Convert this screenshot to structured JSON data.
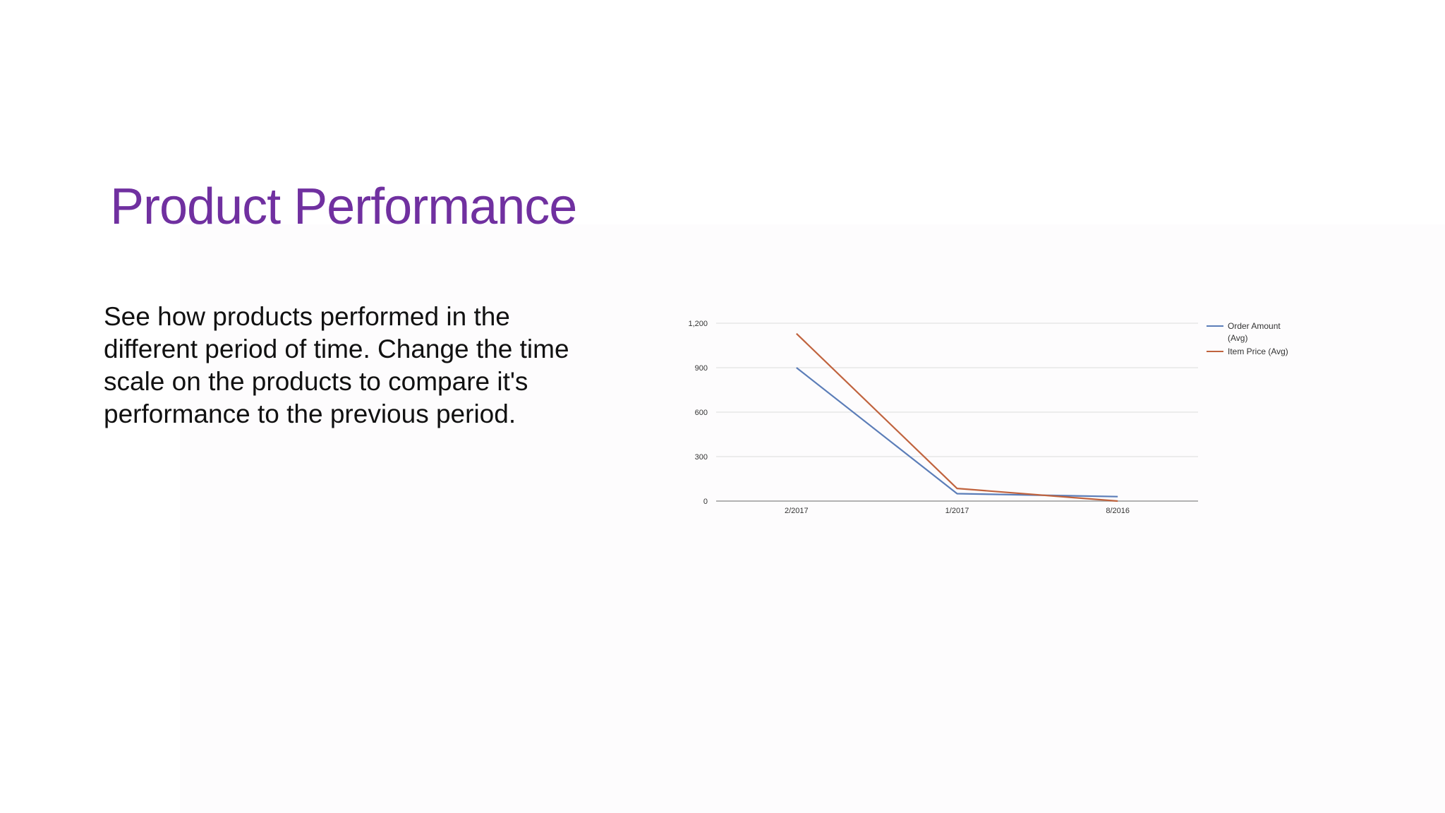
{
  "slide": {
    "title": "Product Performance",
    "title_color": "#7030a0",
    "body": "See how products performed in the different period of time. Change the time scale on the products to compare it's performance to the previous period."
  },
  "chart_data": {
    "type": "line",
    "title": "",
    "xlabel": "",
    "ylabel": "",
    "categories": [
      "2/2017",
      "1/2017",
      "8/2016"
    ],
    "ylim": [
      0,
      1200
    ],
    "yticks": [
      0,
      300,
      600,
      900,
      1200
    ],
    "ytick_labels": [
      "0",
      "300",
      "600",
      "900",
      "1,200"
    ],
    "grid": true,
    "legend": "right",
    "series": [
      {
        "name": "Order Amount (Avg)",
        "name_lines": [
          "Order Amount",
          "(Avg)"
        ],
        "color": "#5b7db8",
        "values": [
          900,
          50,
          30
        ]
      },
      {
        "name": "Item Price (Avg)",
        "name_lines": [
          "Item Price (Avg)"
        ],
        "color": "#c0633e",
        "values": [
          1130,
          85,
          0
        ]
      }
    ]
  }
}
